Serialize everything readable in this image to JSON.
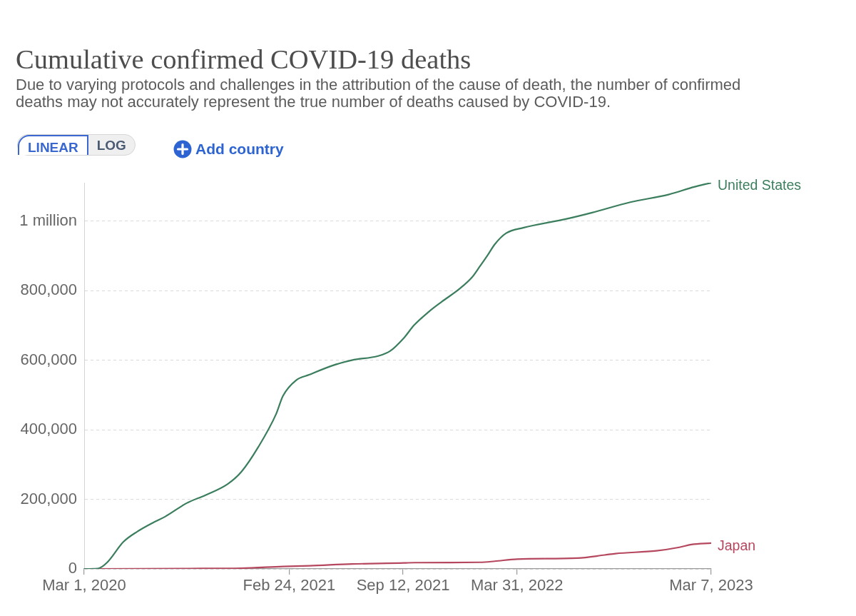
{
  "chart_data": {
    "type": "line",
    "title": "Cumulative confirmed COVID-19 deaths",
    "subtitle": "Due to varying protocols and challenges in the attribution of the cause of death, the number of confirmed deaths may not accurately represent the true number of deaths caused by COVID-19.",
    "annotations": [
      "LINEAR",
      "LOG",
      "Add country"
    ],
    "xlim": [
      "2020-03-01",
      "2023-03-07"
    ],
    "xticks": [
      {
        "value": "2020-03-01",
        "label": "Mar 1, 2020"
      },
      {
        "value": "2021-02-24",
        "label": "Feb 24, 2021"
      },
      {
        "value": "2021-09-12",
        "label": "Sep 12, 2021"
      },
      {
        "value": "2022-03-31",
        "label": "Mar 31, 2022"
      },
      {
        "value": "2023-03-07",
        "label": "Mar 7, 2023"
      }
    ],
    "ylim": [
      0,
      1110000
    ],
    "yticks": [
      0,
      {
        "value": 200000,
        "label": "200,000"
      },
      {
        "value": 400000,
        "label": "400,000"
      },
      {
        "value": 600000,
        "label": "600,000"
      },
      {
        "value": 800000,
        "label": "800,000"
      },
      {
        "value": 1000000,
        "label": "1 million"
      }
    ],
    "grid": "y",
    "marker": "none",
    "series": [
      {
        "name": "United States",
        "color": "#3b7e5e",
        "x": [
          "2020-03-01",
          "2020-03-25",
          "2020-04-10",
          "2020-05-09",
          "2020-06-02",
          "2020-06-30",
          "2020-07-21",
          "2020-08-28",
          "2020-09-30",
          "2020-11-08",
          "2020-12-02",
          "2021-01-01",
          "2021-02-01",
          "2021-02-13",
          "2021-03-08",
          "2021-03-31",
          "2021-05-12",
          "2021-06-14",
          "2021-07-30",
          "2021-08-20",
          "2021-09-14",
          "2021-10-01",
          "2021-10-27",
          "2021-11-19",
          "2021-12-20",
          "2022-01-11",
          "2022-01-25",
          "2022-02-08",
          "2022-02-20",
          "2022-03-12",
          "2022-04-12",
          "2022-06-26",
          "2022-08-10",
          "2022-10-16",
          "2022-12-22",
          "2023-02-05",
          "2023-03-07"
        ],
        "values": [
          0,
          1000,
          18000,
          78000,
          107000,
          133000,
          150000,
          189000,
          212000,
          244000,
          279000,
          351000,
          445000,
          497000,
          542000,
          558000,
          585000,
          600000,
          612000,
          626000,
          665000,
          700000,
          739000,
          768000,
          805000,
          838000,
          870000,
          903000,
          933000,
          965000,
          981000,
          1006000,
          1024000,
          1054000,
          1076000,
          1098000,
          1110000
        ]
      },
      {
        "name": "Japan",
        "color": "#b5475f",
        "x": [
          "2020-03-01",
          "2020-09-01",
          "2020-12-02",
          "2021-02-13",
          "2021-04-01",
          "2021-06-14",
          "2021-09-14",
          "2021-10-01",
          "2022-01-25",
          "2022-02-20",
          "2022-03-31",
          "2022-07-15",
          "2022-09-01",
          "2022-09-20",
          "2022-12-01",
          "2023-01-10",
          "2023-01-31",
          "2023-03-07"
        ],
        "values": [
          0,
          1000,
          2000,
          7000,
          9000,
          14000,
          17000,
          18000,
          19000,
          22000,
          28000,
          31000,
          40000,
          44000,
          52000,
          62000,
          70000,
          74000
        ]
      }
    ]
  }
}
